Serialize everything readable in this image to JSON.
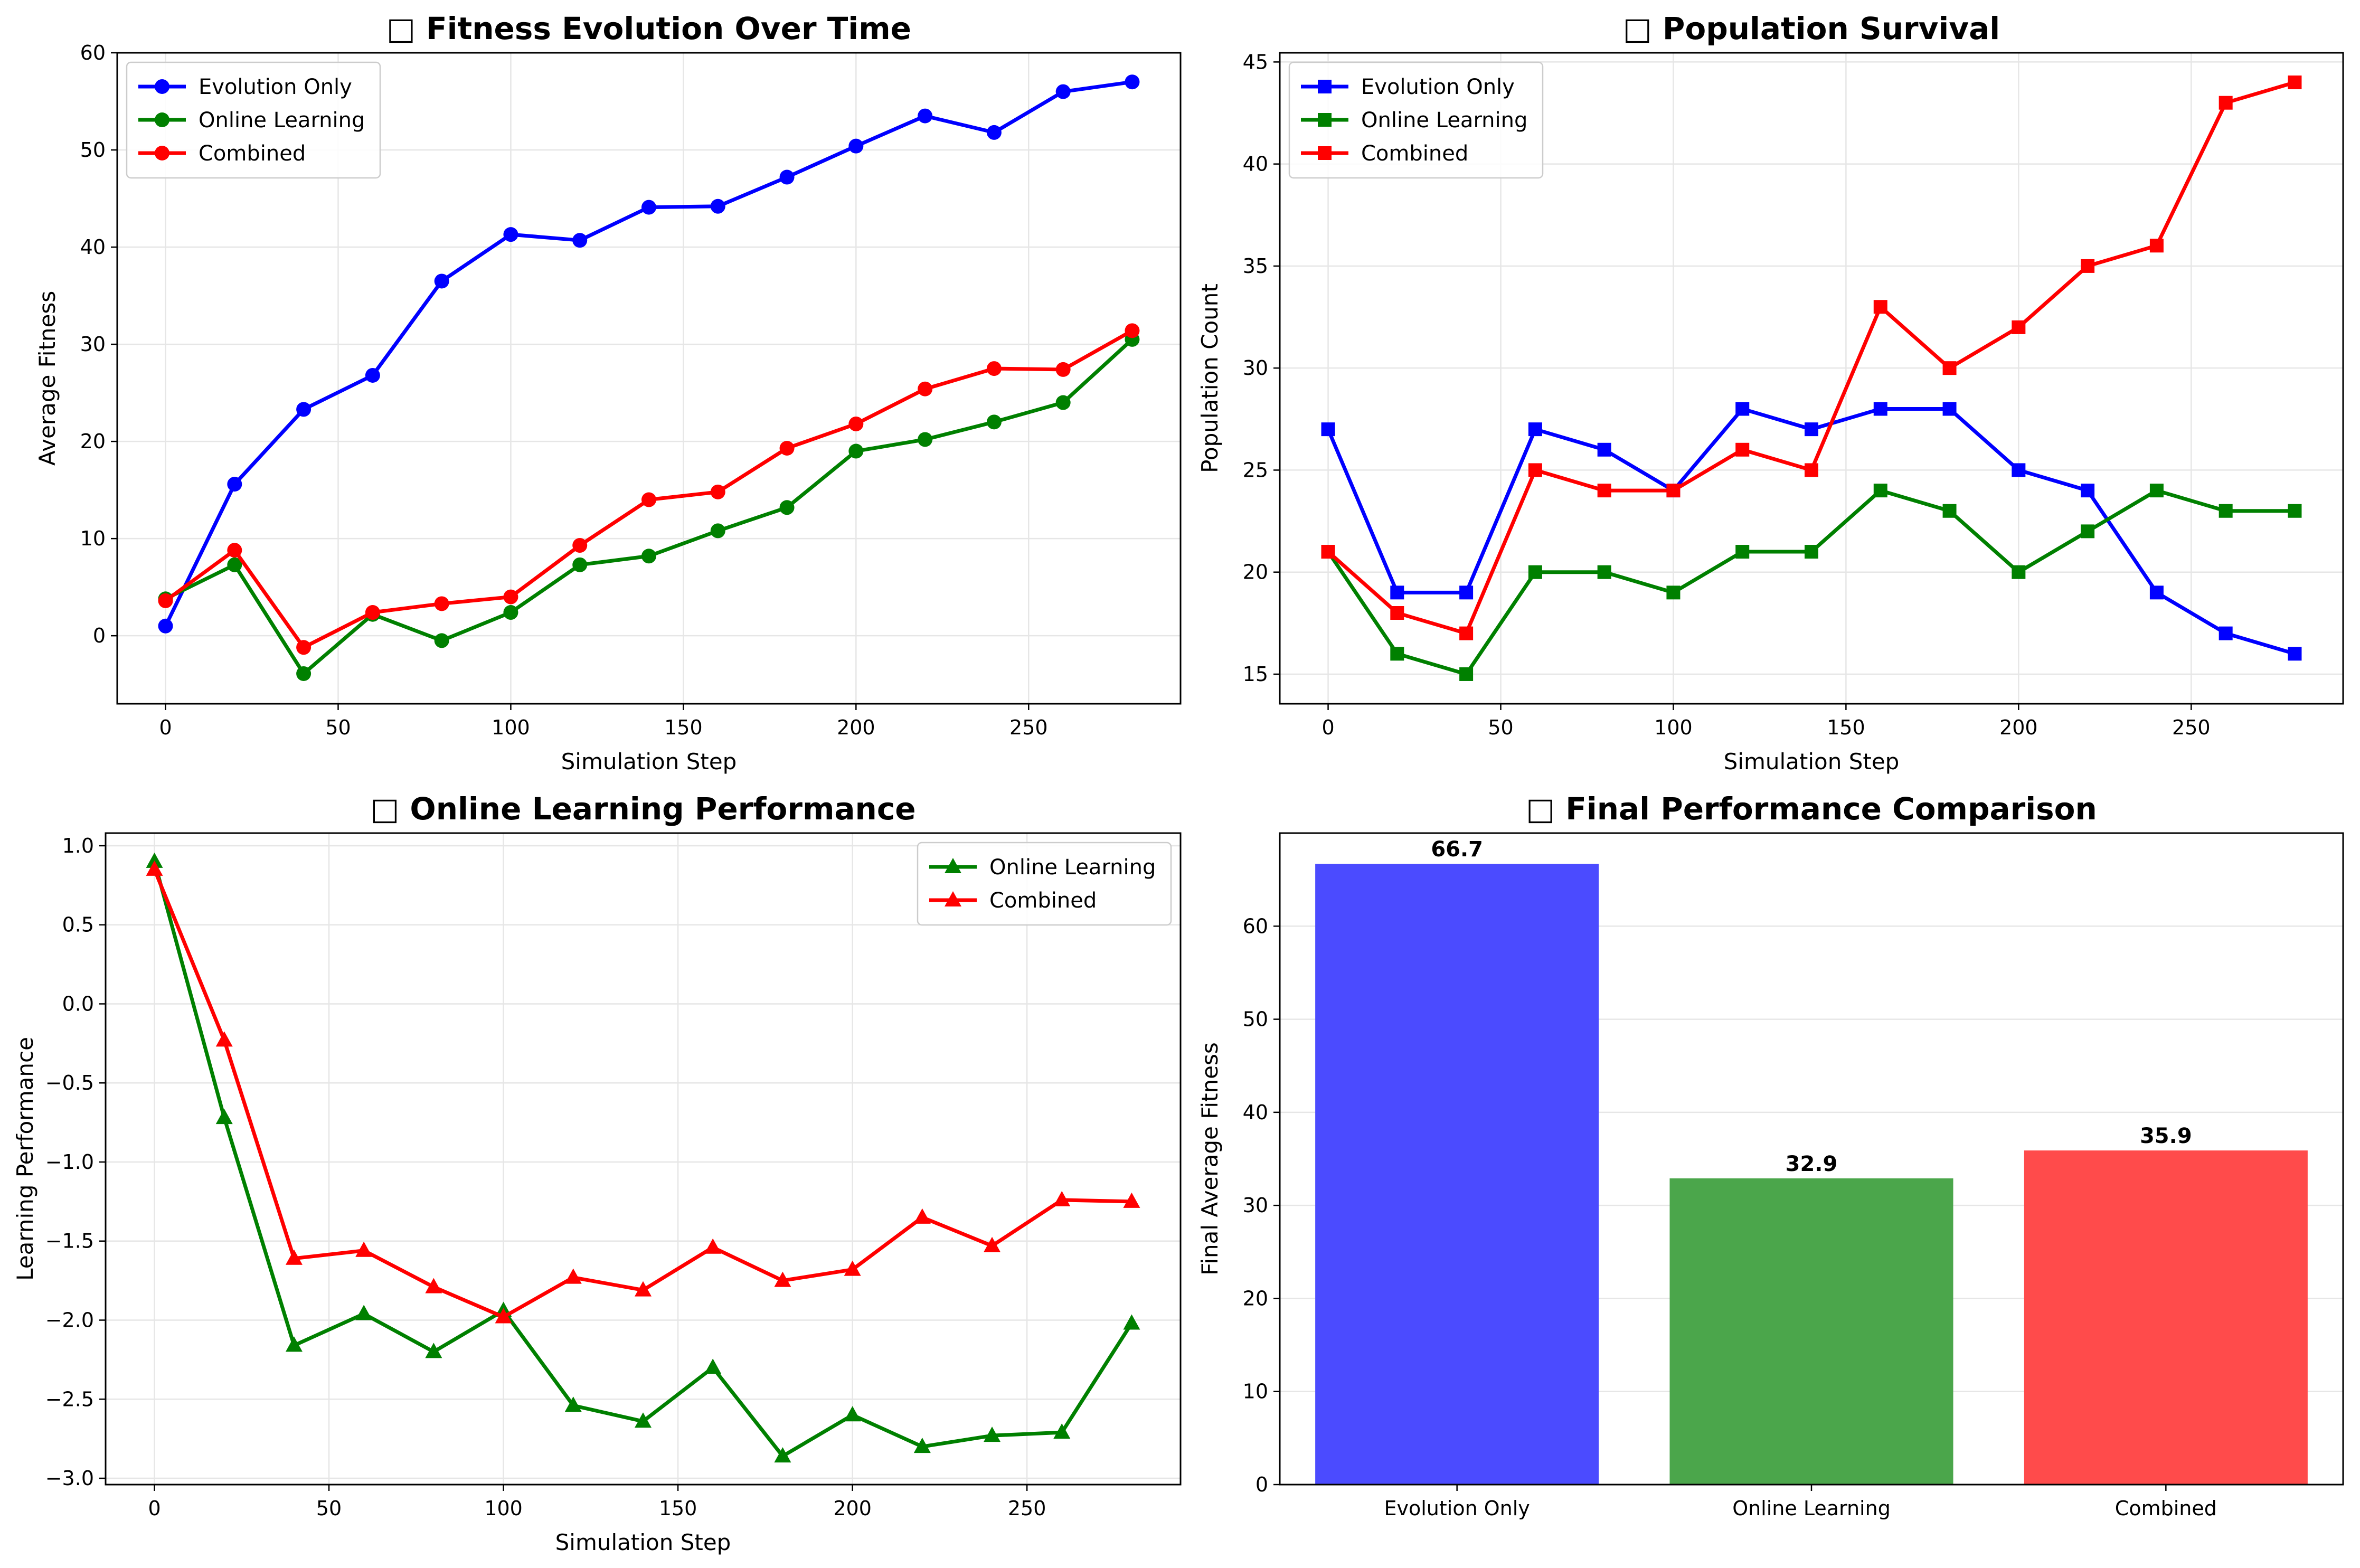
{
  "chart_data": [
    {
      "type": "line",
      "title": "□ Fitness Evolution Over Time",
      "xlabel": "Simulation Step",
      "ylabel": "Average Fitness",
      "xlim": [
        -14,
        294
      ],
      "ylim": [
        -7,
        60
      ],
      "xticks": [
        0,
        50,
        100,
        150,
        200,
        250
      ],
      "yticks": [
        0,
        10,
        20,
        30,
        40,
        50,
        60
      ],
      "grid": true,
      "legend_position": "top-left",
      "marker": "circle",
      "x": [
        0,
        20,
        40,
        60,
        80,
        100,
        120,
        140,
        160,
        180,
        200,
        220,
        240,
        260,
        280
      ],
      "series": [
        {
          "name": "Evolution Only",
          "color": "#0000ff",
          "values": [
            1.0,
            15.6,
            23.3,
            26.8,
            36.5,
            41.3,
            40.7,
            44.1,
            44.2,
            47.2,
            50.4,
            53.5,
            51.8,
            56.0,
            57.0
          ]
        },
        {
          "name": "Online Learning",
          "color": "#008000",
          "values": [
            3.8,
            7.3,
            -3.9,
            2.2,
            -0.5,
            2.4,
            7.3,
            8.2,
            10.8,
            13.2,
            19.0,
            20.2,
            22.0,
            24.0,
            30.5
          ]
        },
        {
          "name": "Combined",
          "color": "#ff0000",
          "values": [
            3.6,
            8.8,
            -1.2,
            2.4,
            3.3,
            4.0,
            9.3,
            14.0,
            14.8,
            19.3,
            21.8,
            25.4,
            27.5,
            27.4,
            31.4
          ]
        }
      ]
    },
    {
      "type": "line",
      "title": "□ Population Survival",
      "xlabel": "Simulation Step",
      "ylabel": "Population Count",
      "xlim": [
        -14,
        294
      ],
      "ylim": [
        13.55,
        45.45
      ],
      "xticks": [
        0,
        50,
        100,
        150,
        200,
        250
      ],
      "yticks": [
        15,
        20,
        25,
        30,
        35,
        40,
        45
      ],
      "grid": true,
      "legend_position": "top-left",
      "marker": "square",
      "x": [
        0,
        20,
        40,
        60,
        80,
        100,
        120,
        140,
        160,
        180,
        200,
        220,
        240,
        260,
        280
      ],
      "series": [
        {
          "name": "Evolution Only",
          "color": "#0000ff",
          "values": [
            27,
            19,
            19,
            27,
            26,
            24,
            28,
            27,
            28,
            28,
            25,
            24,
            19,
            17,
            16
          ]
        },
        {
          "name": "Online Learning",
          "color": "#008000",
          "values": [
            21,
            16,
            15,
            20,
            20,
            19,
            21,
            21,
            24,
            23,
            20,
            22,
            24,
            23,
            23
          ]
        },
        {
          "name": "Combined",
          "color": "#ff0000",
          "values": [
            21,
            18,
            17,
            25,
            24,
            24,
            26,
            25,
            33,
            30,
            32,
            35,
            36,
            43,
            44
          ]
        }
      ]
    },
    {
      "type": "line",
      "title": "□ Online Learning Performance",
      "xlabel": "Simulation Step",
      "ylabel": "Learning Performance",
      "xlim": [
        -14,
        294
      ],
      "ylim": [
        -3.04,
        1.08
      ],
      "xticks": [
        0,
        50,
        100,
        150,
        200,
        250
      ],
      "yticks": [
        -3.0,
        -2.5,
        -2.0,
        -1.5,
        -1.0,
        -0.5,
        0.0,
        0.5,
        1.0
      ],
      "grid": true,
      "legend_position": "top-right",
      "marker": "triangle",
      "x": [
        0,
        20,
        40,
        60,
        80,
        100,
        120,
        140,
        160,
        180,
        200,
        220,
        240,
        260,
        280
      ],
      "series": [
        {
          "name": "Online Learning",
          "color": "#008000",
          "values": [
            0.9,
            -0.72,
            -2.16,
            -1.96,
            -2.2,
            -1.94,
            -2.54,
            -2.64,
            -2.3,
            -2.86,
            -2.6,
            -2.8,
            -2.73,
            -2.71,
            -2.02
          ]
        },
        {
          "name": "Combined",
          "color": "#ff0000",
          "values": [
            0.85,
            -0.23,
            -1.61,
            -1.56,
            -1.79,
            -1.98,
            -1.73,
            -1.81,
            -1.54,
            -1.75,
            -1.68,
            -1.35,
            -1.53,
            -1.24,
            -1.25
          ]
        }
      ]
    },
    {
      "type": "bar",
      "title": "□ Final Performance Comparison",
      "xlabel": "",
      "ylabel": "Final Average Fitness",
      "ylim": [
        0,
        70
      ],
      "yticks": [
        0,
        10,
        20,
        30,
        40,
        50,
        60
      ],
      "grid": true,
      "categories": [
        "Evolution Only",
        "Online Learning",
        "Combined"
      ],
      "values": [
        66.7,
        32.9,
        35.9
      ],
      "value_labels": [
        "66.7",
        "32.9",
        "35.9"
      ],
      "colors": [
        "#4b4bff",
        "#4ba64b",
        "#ff4b4b"
      ]
    }
  ]
}
